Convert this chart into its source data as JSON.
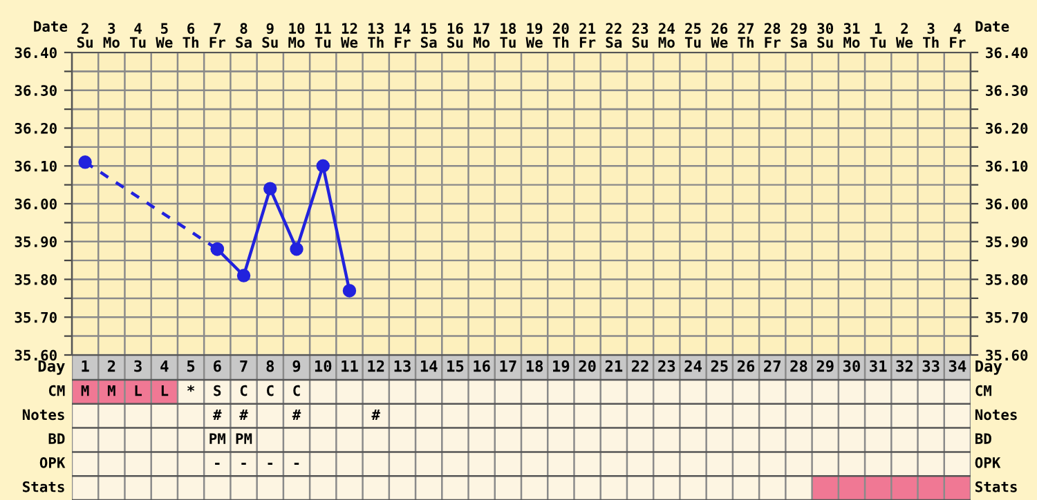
{
  "chart_data": [
    {
      "type": "line",
      "xlabel": "Date",
      "categories": [
        "2\nSu",
        "3\nMo",
        "4\nTu",
        "5\nWe",
        "6\nTh",
        "7\nFr",
        "8\nSa",
        "9\nSu",
        "10\nMo",
        "11\nTu",
        "12\nWe",
        "13\nTh",
        "14\nFr",
        "15\nSa",
        "16\nSu",
        "17\nMo",
        "18\nTu",
        "19\nWe",
        "20\nTh",
        "21\nFr",
        "22\nSa",
        "23\nSu",
        "24\nMo",
        "25\nTu",
        "26\nWe",
        "27\nTh",
        "28\nFr",
        "29\nSa",
        "30\nSu",
        "31\nMo",
        "1\nTu",
        "2\nWe",
        "3\nTh",
        "4\nFr"
      ],
      "series": [
        {
          "color": "#2222dd",
          "line_style": "dashed",
          "values": [
            36.11,
            null,
            null,
            null,
            null,
            35.88,
            null,
            null,
            null,
            null,
            null,
            null,
            null,
            null,
            null,
            null,
            null,
            null,
            null,
            null,
            null,
            null,
            null,
            null,
            null,
            null,
            null,
            null,
            null,
            null,
            null,
            null,
            null,
            null
          ]
        },
        {
          "color": "#2222dd",
          "line_style": "solid",
          "values": [
            null,
            null,
            null,
            null,
            null,
            35.88,
            35.81,
            36.04,
            35.88,
            36.1,
            35.77,
            null,
            null,
            null,
            null,
            null,
            null,
            null,
            null,
            null,
            null,
            null,
            null,
            null,
            null,
            null,
            null,
            null,
            null,
            null,
            null,
            null,
            null,
            null
          ]
        }
      ],
      "marker": "circle",
      "ylim": [
        35.6,
        36.4
      ],
      "yticks": [
        {
          "value": 35.6,
          "label": "35.60"
        },
        {
          "value": 35.65,
          "label": null
        },
        {
          "value": 35.7,
          "label": "35.70"
        },
        {
          "value": 35.75,
          "label": null
        },
        {
          "value": 35.8,
          "label": "35.80"
        },
        {
          "value": 35.85,
          "label": null
        },
        {
          "value": 35.9,
          "label": "35.90"
        },
        {
          "value": 35.95,
          "label": null
        },
        {
          "value": 36.0,
          "label": "36.00"
        },
        {
          "value": 36.05,
          "label": null
        },
        {
          "value": 36.1,
          "label": "36.10"
        },
        {
          "value": 36.15,
          "label": null
        },
        {
          "value": 36.2,
          "label": "36.20"
        },
        {
          "value": 36.25,
          "label": null
        },
        {
          "value": 36.3,
          "label": "36.30"
        },
        {
          "value": 36.35,
          "label": null
        },
        {
          "value": 36.4,
          "label": "36.40"
        }
      ],
      "y2lim": [
        35.6,
        36.4
      ],
      "y2ticks": [
        {
          "value": 35.6,
          "label": "35.60"
        },
        {
          "value": 35.65,
          "label": null
        },
        {
          "value": 35.7,
          "label": "35.70"
        },
        {
          "value": 35.75,
          "label": null
        },
        {
          "value": 35.8,
          "label": "35.80"
        },
        {
          "value": 35.85,
          "label": null
        },
        {
          "value": 35.9,
          "label": "35.90"
        },
        {
          "value": 35.95,
          "label": null
        },
        {
          "value": 36.0,
          "label": "36.00"
        },
        {
          "value": 36.05,
          "label": null
        },
        {
          "value": 36.1,
          "label": "36.10"
        },
        {
          "value": 36.15,
          "label": null
        },
        {
          "value": 36.2,
          "label": "36.20"
        },
        {
          "value": 36.25,
          "label": null
        },
        {
          "value": 36.3,
          "label": "36.30"
        },
        {
          "value": 36.35,
          "label": null
        },
        {
          "value": 36.4,
          "label": "36.40"
        }
      ],
      "grid": true,
      "legend": false
    },
    {
      "type": "heatmap",
      "xlabel": "Day",
      "categories": [
        "1",
        "2",
        "3",
        "4",
        "5",
        "6",
        "7",
        "8",
        "9",
        "10",
        "11",
        "12",
        "13",
        "14",
        "15",
        "16",
        "17",
        "18",
        "19",
        "20",
        "21",
        "22",
        "23",
        "24",
        "25",
        "26",
        "27",
        "28",
        "29",
        "30",
        "31",
        "32",
        "33",
        "34"
      ],
      "y_categories": [
        "CM",
        "Notes",
        "BD",
        "OPK",
        "Stats"
      ],
      "y2_categories": [
        "CM",
        "Notes",
        "BD",
        "OPK",
        "Stats"
      ],
      "cells": [
        [
          null,
          null,
          null,
          null,
          null,
          null,
          null,
          null,
          null,
          null,
          null,
          null,
          null,
          null,
          null,
          null,
          null,
          null,
          null,
          null,
          null,
          null,
          null,
          null,
          null,
          null,
          null,
          null,
          null,
          null,
          null,
          null,
          null,
          null
        ],
        [
          null,
          null,
          null,
          null,
          null,
          null,
          null,
          null,
          null,
          null,
          null,
          null,
          null,
          null,
          null,
          null,
          null,
          null,
          null,
          null,
          null,
          null,
          null,
          null,
          null,
          null,
          null,
          null,
          null,
          null,
          null,
          null,
          null,
          null
        ],
        [
          null,
          null,
          null,
          null,
          null,
          null,
          null,
          null,
          null,
          null,
          null,
          null,
          null,
          null,
          null,
          null,
          null,
          null,
          null,
          null,
          null,
          null,
          null,
          null,
          null,
          null,
          null,
          null,
          null,
          null,
          null,
          null,
          null,
          null
        ],
        [
          null,
          null,
          null,
          null,
          null,
          null,
          null,
          null,
          null,
          null,
          null,
          null,
          null,
          null,
          null,
          null,
          null,
          null,
          null,
          null,
          null,
          null,
          null,
          null,
          null,
          null,
          null,
          null,
          null,
          null,
          null,
          null,
          null,
          null
        ],
        [
          null,
          null,
          null,
          null,
          null,
          null,
          null,
          null,
          null,
          null,
          null,
          null,
          null,
          null,
          null,
          null,
          null,
          null,
          null,
          null,
          null,
          null,
          null,
          null,
          null,
          null,
          null,
          null,
          null,
          null,
          null,
          null,
          null,
          null
        ]
      ],
      "colors": [
        [
          "#f07894",
          "#f07894",
          "#f07894",
          "#f07894",
          null,
          null,
          null,
          null,
          null,
          null,
          null,
          null,
          null,
          null,
          null,
          null,
          null,
          null,
          null,
          null,
          null,
          null,
          null,
          null,
          null,
          null,
          null,
          null,
          null,
          null,
          null,
          null,
          null,
          null
        ],
        [
          null,
          null,
          null,
          null,
          null,
          null,
          null,
          null,
          null,
          null,
          null,
          null,
          null,
          null,
          null,
          null,
          null,
          null,
          null,
          null,
          null,
          null,
          null,
          null,
          null,
          null,
          null,
          null,
          null,
          null,
          null,
          null,
          null,
          null
        ],
        [
          null,
          null,
          null,
          null,
          null,
          null,
          null,
          null,
          null,
          null,
          null,
          null,
          null,
          null,
          null,
          null,
          null,
          null,
          null,
          null,
          null,
          null,
          null,
          null,
          null,
          null,
          null,
          null,
          null,
          null,
          null,
          null,
          null,
          null
        ],
        [
          null,
          null,
          null,
          null,
          null,
          null,
          null,
          null,
          null,
          null,
          null,
          null,
          null,
          null,
          null,
          null,
          null,
          null,
          null,
          null,
          null,
          null,
          null,
          null,
          null,
          null,
          null,
          null,
          null,
          null,
          null,
          null,
          null,
          null
        ],
        [
          null,
          null,
          null,
          null,
          null,
          null,
          null,
          null,
          null,
          null,
          null,
          null,
          null,
          null,
          null,
          null,
          null,
          null,
          null,
          null,
          null,
          null,
          null,
          null,
          null,
          null,
          null,
          null,
          "#f07894",
          "#f07894",
          "#f07894",
          "#f07894",
          "#f07894",
          "#f07894"
        ]
      ],
      "cell_labels": [
        [
          "M",
          "M",
          "L",
          "L",
          "*",
          "S",
          "C",
          "C",
          "C",
          null,
          null,
          null,
          null,
          null,
          null,
          null,
          null,
          null,
          null,
          null,
          null,
          null,
          null,
          null,
          null,
          null,
          null,
          null,
          null,
          null,
          null,
          null,
          null,
          null
        ],
        [
          null,
          null,
          null,
          null,
          null,
          "#",
          "#",
          null,
          "#",
          null,
          null,
          "#",
          null,
          null,
          null,
          null,
          null,
          null,
          null,
          null,
          null,
          null,
          null,
          null,
          null,
          null,
          null,
          null,
          null,
          null,
          null,
          null,
          null,
          null
        ],
        [
          null,
          null,
          null,
          null,
          null,
          "PM",
          "PM",
          null,
          null,
          null,
          null,
          null,
          null,
          null,
          null,
          null,
          null,
          null,
          null,
          null,
          null,
          null,
          null,
          null,
          null,
          null,
          null,
          null,
          null,
          null,
          null,
          null,
          null,
          null
        ],
        [
          null,
          null,
          null,
          null,
          null,
          "-",
          "-",
          "-",
          "-",
          null,
          null,
          null,
          null,
          null,
          null,
          null,
          null,
          null,
          null,
          null,
          null,
          null,
          null,
          null,
          null,
          null,
          null,
          null,
          null,
          null,
          null,
          null,
          null,
          null
        ],
        [
          null,
          null,
          null,
          null,
          null,
          null,
          null,
          null,
          null,
          null,
          null,
          null,
          null,
          null,
          null,
          null,
          null,
          null,
          null,
          null,
          null,
          null,
          null,
          null,
          null,
          null,
          null,
          null,
          null,
          null,
          null,
          null,
          null,
          null
        ]
      ]
    }
  ]
}
